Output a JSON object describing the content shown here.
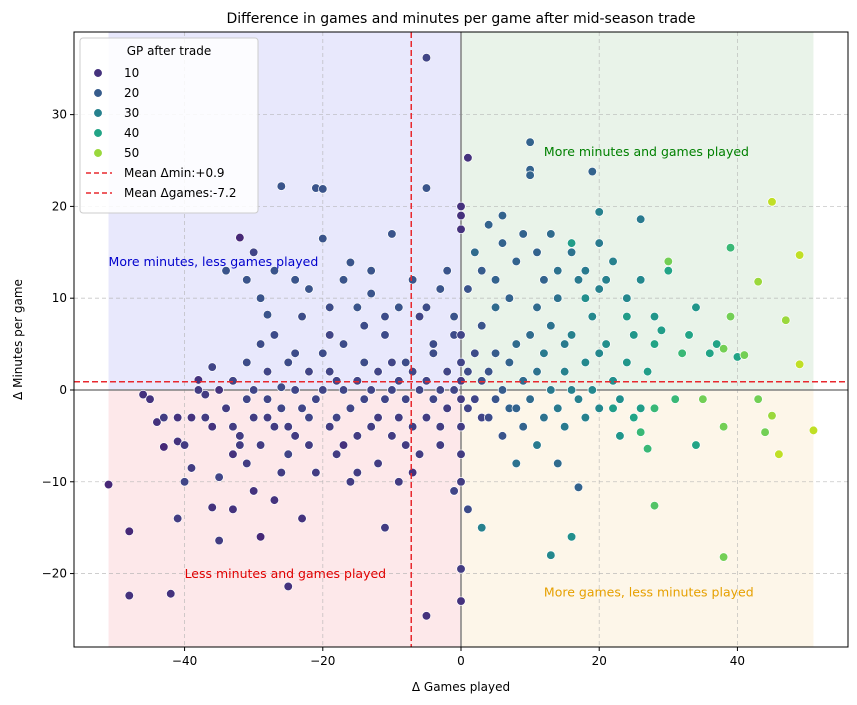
{
  "chart_data": {
    "type": "scatter",
    "title": "Difference in games and minutes per game after mid-season trade",
    "xlabel": "Δ Games played",
    "ylabel": "Δ Minutes per game",
    "xlim": [
      -56,
      56
    ],
    "ylim": [
      -28,
      39
    ],
    "xticks": [
      -40,
      -20,
      0,
      20,
      40
    ],
    "yticks": [
      -20,
      -10,
      0,
      10,
      20,
      30
    ],
    "xtick_labels": [
      "−40",
      "−20",
      "0",
      "20",
      "40"
    ],
    "ytick_labels": [
      "−20",
      "−10",
      "0",
      "10",
      "20",
      "30"
    ],
    "grid": true,
    "colorscale": "viridis",
    "color_range": [
      0,
      55
    ],
    "quadrants": [
      {
        "name": "upper-left",
        "x": [
          -51,
          0
        ],
        "y": [
          0,
          39
        ],
        "color": "#e8e8fc"
      },
      {
        "name": "upper-right",
        "x": [
          0,
          51
        ],
        "y": [
          0,
          39
        ],
        "color": "#e9f3e9"
      },
      {
        "name": "lower-left",
        "x": [
          -51,
          0
        ],
        "y": [
          -28,
          0
        ],
        "color": "#fde8ea"
      },
      {
        "name": "lower-right",
        "x": [
          0,
          51
        ],
        "y": [
          -28,
          0
        ],
        "color": "#fdf6e9"
      }
    ],
    "annotations": [
      {
        "text": "More minutes and games played",
        "x": 12,
        "y": 26,
        "color": "#008000"
      },
      {
        "text": "More minutes, less games played",
        "x": -51,
        "y": 14,
        "color": "#0000cc"
      },
      {
        "text": "Less minutes and games played",
        "x": -40,
        "y": -20,
        "color": "#e00000"
      },
      {
        "text": "More games, less minutes played",
        "x": 12,
        "y": -22,
        "color": "#e6a000"
      }
    ],
    "mean_lines": [
      {
        "axis": "y",
        "value": 0.9,
        "label": "Mean Δmin:+0.9",
        "color": "#e8282e"
      },
      {
        "axis": "x",
        "value": -7.2,
        "label": "Mean Δgames:-7.2",
        "color": "#e8282e"
      }
    ],
    "legend": {
      "title": "GP after trade",
      "placement": "top-left",
      "entries": [
        {
          "label": "10",
          "value": 10
        },
        {
          "label": "20",
          "value": 20
        },
        {
          "label": "30",
          "value": 30
        },
        {
          "label": "40",
          "value": 40
        },
        {
          "label": "50",
          "value": 50
        }
      ]
    },
    "points": [
      [
        -51,
        -10.3,
        8
      ],
      [
        -48,
        -15.4,
        8
      ],
      [
        -48,
        -22.4,
        10
      ],
      [
        -42,
        -22.2,
        10
      ],
      [
        -41,
        -14,
        12
      ],
      [
        -44,
        -3.5,
        10
      ],
      [
        -43,
        -6.2,
        8
      ],
      [
        -41,
        -5.6,
        10
      ],
      [
        -40,
        -6,
        12
      ],
      [
        -40,
        -10,
        14
      ],
      [
        -39,
        -8.5,
        12
      ],
      [
        -38,
        1.1,
        10
      ],
      [
        -37,
        -0.5,
        12
      ],
      [
        -36,
        -4,
        10
      ],
      [
        -36,
        -12.8,
        10
      ],
      [
        -35,
        -16.4,
        12
      ],
      [
        -35,
        -9.5,
        14
      ],
      [
        -34,
        -2,
        12
      ],
      [
        -33,
        -7,
        10
      ],
      [
        -33,
        -13,
        10
      ],
      [
        -32,
        16.6,
        8
      ],
      [
        -32,
        -5,
        12
      ],
      [
        -31,
        -1,
        14
      ],
      [
        -30,
        15,
        14
      ],
      [
        -30,
        -11,
        10
      ],
      [
        -29,
        -16,
        8
      ],
      [
        -28,
        8.2,
        18
      ],
      [
        -28,
        -3,
        12
      ],
      [
        -27,
        -12,
        10
      ],
      [
        -26,
        22.2,
        18
      ],
      [
        -26,
        0.3,
        16
      ],
      [
        -25,
        -21.4,
        10
      ],
      [
        -25,
        -7,
        14
      ],
      [
        -24,
        4,
        16
      ],
      [
        -23,
        -14,
        10
      ],
      [
        -22,
        -3,
        14
      ],
      [
        -21,
        22,
        18
      ],
      [
        -20,
        21.9,
        18
      ],
      [
        -20,
        16.5,
        18
      ],
      [
        -19,
        6,
        14
      ],
      [
        -18,
        1,
        14
      ],
      [
        -17,
        -6,
        10
      ],
      [
        -16,
        13.9,
        18
      ],
      [
        -15,
        -9,
        12
      ],
      [
        -14,
        7,
        16
      ],
      [
        -13,
        10.5,
        18
      ],
      [
        -12,
        -8,
        12
      ],
      [
        -11,
        -15,
        12
      ],
      [
        -10,
        17,
        18
      ],
      [
        -10,
        3,
        14
      ],
      [
        -9,
        -10,
        12
      ],
      [
        -8,
        -6,
        12
      ],
      [
        -7,
        -9,
        10
      ],
      [
        -6,
        8,
        14
      ],
      [
        -5,
        36.2,
        14
      ],
      [
        -5,
        22,
        18
      ],
      [
        -5,
        -24.6,
        10
      ],
      [
        -4,
        4,
        16
      ],
      [
        -3,
        -4,
        12
      ],
      [
        -2,
        13,
        18
      ],
      [
        -1,
        -11,
        14
      ],
      [
        0,
        20,
        10
      ],
      [
        0,
        19,
        10
      ],
      [
        0,
        17.5,
        10
      ],
      [
        0,
        -23,
        10
      ],
      [
        0,
        -19.5,
        12
      ],
      [
        0,
        -10,
        12
      ],
      [
        1,
        25.3,
        10
      ],
      [
        1,
        -13,
        16
      ],
      [
        2,
        15,
        24
      ],
      [
        3,
        -15,
        30
      ],
      [
        3,
        -3,
        14
      ],
      [
        4,
        18,
        22
      ],
      [
        5,
        9,
        24
      ],
      [
        6,
        19,
        22
      ],
      [
        7,
        -2,
        22
      ],
      [
        8,
        -8,
        26
      ],
      [
        10,
        27,
        22
      ],
      [
        10,
        24,
        22
      ],
      [
        10,
        23.4,
        22
      ],
      [
        11,
        -6,
        28
      ],
      [
        12,
        12,
        22
      ],
      [
        13,
        -18,
        32
      ],
      [
        14,
        -8,
        24
      ],
      [
        15,
        5,
        28
      ],
      [
        16,
        -16,
        34
      ],
      [
        16,
        16,
        38
      ],
      [
        17,
        -10.6,
        22
      ],
      [
        18,
        10,
        34
      ],
      [
        19,
        23.8,
        22
      ],
      [
        20,
        19.4,
        30
      ],
      [
        20,
        4,
        32
      ],
      [
        21,
        12,
        30
      ],
      [
        22,
        -2,
        38
      ],
      [
        23,
        -5,
        36
      ],
      [
        24,
        8,
        38
      ],
      [
        25,
        -3,
        40
      ],
      [
        26,
        18.6,
        28
      ],
      [
        26,
        -4.6,
        44
      ],
      [
        27,
        -6.4,
        44
      ],
      [
        28,
        -12.6,
        46
      ],
      [
        28,
        -2,
        44
      ],
      [
        28,
        8,
        36
      ],
      [
        29,
        6.5,
        38
      ],
      [
        30,
        14,
        48
      ],
      [
        30,
        13,
        40
      ],
      [
        31,
        -1,
        44
      ],
      [
        32,
        4,
        44
      ],
      [
        33,
        6,
        40
      ],
      [
        34,
        9,
        36
      ],
      [
        34,
        -6,
        40
      ],
      [
        35,
        -1,
        48
      ],
      [
        36,
        4,
        40
      ],
      [
        37,
        5,
        40
      ],
      [
        38,
        -18.2,
        48
      ],
      [
        38,
        -4,
        48
      ],
      [
        38,
        4.5,
        48
      ],
      [
        39,
        15.5,
        44
      ],
      [
        39,
        8,
        48
      ],
      [
        40,
        3.6,
        40
      ],
      [
        41,
        3.8,
        48
      ],
      [
        43,
        11.8,
        50
      ],
      [
        43,
        -1,
        48
      ],
      [
        44,
        -4.6,
        48
      ],
      [
        45,
        -2.8,
        50
      ],
      [
        45,
        20.5,
        52
      ],
      [
        46,
        -7,
        52
      ],
      [
        47,
        7.6,
        50
      ],
      [
        49,
        14.7,
        52
      ],
      [
        49,
        2.8,
        52
      ],
      [
        51,
        -4.4,
        52
      ],
      [
        -46,
        -0.5,
        10
      ],
      [
        -45,
        -1,
        10
      ],
      [
        -43,
        -3,
        12
      ],
      [
        -41,
        -3,
        10
      ],
      [
        -39,
        -3,
        10
      ],
      [
        -38,
        0,
        12
      ],
      [
        -37,
        -3,
        12
      ],
      [
        -36,
        2.5,
        14
      ],
      [
        -35,
        0,
        10
      ],
      [
        -34,
        -2,
        12
      ],
      [
        -33,
        1,
        14
      ],
      [
        -33,
        -4,
        12
      ],
      [
        -32,
        -6,
        12
      ],
      [
        -31,
        3,
        16
      ],
      [
        -31,
        -8,
        12
      ],
      [
        -30,
        0,
        14
      ],
      [
        -30,
        -3,
        12
      ],
      [
        -29,
        5,
        16
      ],
      [
        -29,
        -6,
        12
      ],
      [
        -28,
        -1,
        14
      ],
      [
        -28,
        2,
        14
      ],
      [
        -27,
        -4,
        12
      ],
      [
        -27,
        6,
        16
      ],
      [
        -26,
        -2,
        14
      ],
      [
        -26,
        -9,
        12
      ],
      [
        -25,
        3,
        16
      ],
      [
        -25,
        -4,
        12
      ],
      [
        -24,
        0,
        14
      ],
      [
        -24,
        -5,
        12
      ],
      [
        -23,
        -2,
        14
      ],
      [
        -23,
        8,
        16
      ],
      [
        -22,
        -6,
        12
      ],
      [
        -22,
        2,
        14
      ],
      [
        -21,
        -1,
        14
      ],
      [
        -21,
        -9,
        12
      ],
      [
        -20,
        0,
        14
      ],
      [
        -20,
        4,
        16
      ],
      [
        -19,
        -4,
        12
      ],
      [
        -19,
        2,
        14
      ],
      [
        -18,
        -3,
        14
      ],
      [
        -18,
        -7,
        12
      ],
      [
        -17,
        0,
        14
      ],
      [
        -17,
        5,
        16
      ],
      [
        -16,
        -2,
        14
      ],
      [
        -16,
        -10,
        12
      ],
      [
        -15,
        1,
        14
      ],
      [
        -15,
        -5,
        12
      ],
      [
        -14,
        -1,
        14
      ],
      [
        -14,
        3,
        16
      ],
      [
        -13,
        -4,
        12
      ],
      [
        -13,
        0,
        14
      ],
      [
        -12,
        2,
        14
      ],
      [
        -12,
        -3,
        12
      ],
      [
        -11,
        -1,
        14
      ],
      [
        -11,
        6,
        16
      ],
      [
        -10,
        0,
        14
      ],
      [
        -10,
        -5,
        12
      ],
      [
        -9,
        1,
        14
      ],
      [
        -9,
        -3,
        12
      ],
      [
        -8,
        3,
        16
      ],
      [
        -8,
        -1,
        14
      ],
      [
        -7,
        -4,
        12
      ],
      [
        -7,
        2,
        14
      ],
      [
        -6,
        0,
        14
      ],
      [
        -6,
        -7,
        12
      ],
      [
        -5,
        1,
        14
      ],
      [
        -5,
        -3,
        12
      ],
      [
        -4,
        -1,
        14
      ],
      [
        -4,
        5,
        16
      ],
      [
        -3,
        0,
        14
      ],
      [
        -3,
        -6,
        12
      ],
      [
        -2,
        2,
        14
      ],
      [
        -2,
        -2,
        12
      ],
      [
        -1,
        0,
        14
      ],
      [
        -1,
        6,
        16
      ],
      [
        0,
        1,
        12
      ],
      [
        0,
        -1,
        12
      ],
      [
        0,
        3,
        14
      ],
      [
        0,
        -4,
        12
      ],
      [
        0,
        6,
        14
      ],
      [
        0,
        -7,
        12
      ],
      [
        1,
        2,
        16
      ],
      [
        1,
        -2,
        14
      ],
      [
        2,
        4,
        16
      ],
      [
        2,
        -1,
        14
      ],
      [
        3,
        1,
        18
      ],
      [
        3,
        7,
        18
      ],
      [
        4,
        -3,
        16
      ],
      [
        4,
        2,
        18
      ],
      [
        5,
        -1,
        18
      ],
      [
        5,
        4,
        20
      ],
      [
        6,
        0,
        20
      ],
      [
        6,
        -5,
        18
      ],
      [
        7,
        3,
        22
      ],
      [
        7,
        10,
        22
      ],
      [
        8,
        -2,
        22
      ],
      [
        8,
        5,
        24
      ],
      [
        9,
        1,
        24
      ],
      [
        9,
        -4,
        22
      ],
      [
        10,
        6,
        24
      ],
      [
        10,
        -1,
        24
      ],
      [
        11,
        2,
        26
      ],
      [
        11,
        9,
        24
      ],
      [
        12,
        -3,
        26
      ],
      [
        12,
        4,
        28
      ],
      [
        13,
        0,
        28
      ],
      [
        13,
        7,
        26
      ],
      [
        14,
        -2,
        28
      ],
      [
        14,
        10,
        26
      ],
      [
        15,
        2,
        30
      ],
      [
        15,
        -4,
        28
      ],
      [
        16,
        6,
        30
      ],
      [
        16,
        0,
        30
      ],
      [
        17,
        -1,
        30
      ],
      [
        17,
        12,
        28
      ],
      [
        18,
        3,
        32
      ],
      [
        18,
        -3,
        30
      ],
      [
        19,
        8,
        32
      ],
      [
        19,
        0,
        32
      ],
      [
        20,
        -2,
        32
      ],
      [
        20,
        11,
        30
      ],
      [
        21,
        5,
        34
      ],
      [
        22,
        1,
        34
      ],
      [
        23,
        -1,
        34
      ],
      [
        24,
        3,
        36
      ],
      [
        25,
        6,
        36
      ],
      [
        26,
        -2,
        38
      ],
      [
        27,
        2,
        38
      ],
      [
        28,
        5,
        40
      ],
      [
        -34,
        13,
        18
      ],
      [
        -31,
        12,
        18
      ],
      [
        -29,
        10,
        18
      ],
      [
        -27,
        13,
        18
      ],
      [
        -24,
        12,
        18
      ],
      [
        -22,
        11,
        18
      ],
      [
        -19,
        9,
        16
      ],
      [
        -17,
        12,
        18
      ],
      [
        -15,
        9,
        18
      ],
      [
        -13,
        13,
        18
      ],
      [
        -11,
        8,
        16
      ],
      [
        -9,
        9,
        18
      ],
      [
        -7,
        12,
        18
      ],
      [
        -5,
        9,
        16
      ],
      [
        -3,
        11,
        18
      ],
      [
        -1,
        8,
        18
      ],
      [
        1,
        11,
        18
      ],
      [
        3,
        13,
        20
      ],
      [
        5,
        12,
        22
      ],
      [
        6,
        16,
        22
      ],
      [
        8,
        14,
        22
      ],
      [
        9,
        17,
        22
      ],
      [
        11,
        15,
        22
      ],
      [
        13,
        17,
        24
      ],
      [
        14,
        13,
        26
      ],
      [
        16,
        15,
        26
      ],
      [
        18,
        13,
        28
      ],
      [
        20,
        16,
        28
      ],
      [
        22,
        14,
        30
      ],
      [
        24,
        10,
        32
      ],
      [
        26,
        12,
        32
      ]
    ]
  }
}
